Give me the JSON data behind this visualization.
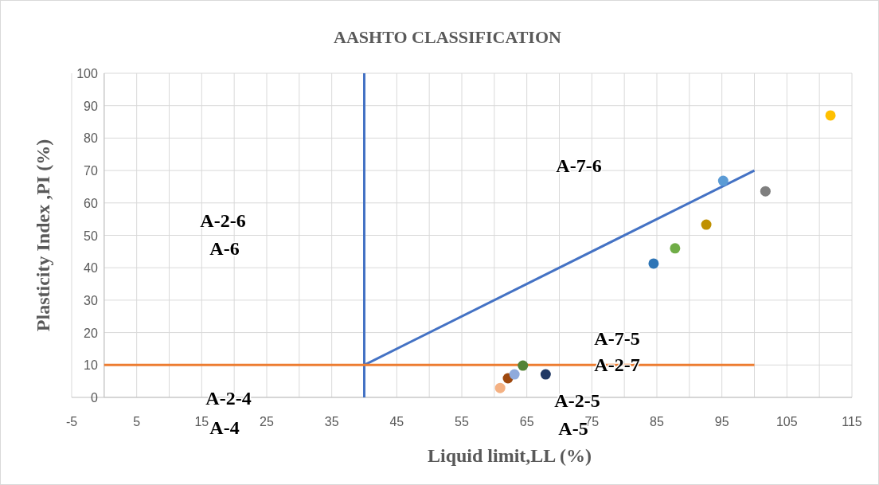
{
  "chart_data": {
    "type": "scatter",
    "title": "AASHTO CLASSIFICATION",
    "xlabel": "Liquid limit,LL (%)",
    "ylabel": "Plasticity Index ,PI (%)",
    "xlim": [
      -5,
      115
    ],
    "xticks": [
      -5,
      {
        "value": 0,
        "label": null
      },
      5,
      {
        "value": 10,
        "label": null
      },
      15,
      {
        "value": 20,
        "label": null
      },
      25,
      {
        "value": 30,
        "label": null
      },
      35,
      {
        "value": 40,
        "label": null
      },
      45,
      {
        "value": 50,
        "label": null
      },
      55,
      {
        "value": 60,
        "label": null
      },
      65,
      {
        "value": 70,
        "label": null
      },
      75,
      {
        "value": 80,
        "label": null
      },
      85,
      {
        "value": 90,
        "label": null
      },
      95,
      {
        "value": 100,
        "label": null
      },
      105,
      {
        "value": 110,
        "label": null
      },
      115
    ],
    "ylim": [
      0,
      100
    ],
    "yticks": [
      0,
      10,
      20,
      30,
      40,
      50,
      60,
      70,
      80,
      90,
      100
    ],
    "grid": true,
    "marker": "circle",
    "series": [
      {
        "type": "line",
        "x": [
          40,
          40
        ],
        "values": [
          0,
          100
        ],
        "color": "#4472c4",
        "marker": "none"
      },
      {
        "type": "line",
        "x": [
          40,
          100
        ],
        "values": [
          10,
          70
        ],
        "color": "#4472c4",
        "marker": "none"
      },
      {
        "type": "line",
        "x": [
          0,
          100
        ],
        "values": [
          10,
          10
        ],
        "color": "#ed7d31",
        "marker": "none"
      },
      {
        "x": [
          111.7,
          95.2,
          101.7,
          92.6,
          87.8,
          84.5,
          64.4,
          67.9,
          62.1,
          63.1,
          60.9
        ],
        "values": [
          87,
          66.8,
          63.6,
          53.3,
          46,
          41.3,
          9.8,
          7.1,
          5.9,
          7.1,
          2.9
        ],
        "colors": [
          "#ffc000",
          "#5b9bd5",
          "#7f7f7f",
          "#bf9000",
          "#70ad47",
          "#2e75b6",
          "#548235",
          "#203864",
          "#9e480e",
          "#8faadc",
          "#f4b183"
        ]
      }
    ],
    "annotations": [
      "A-7-6",
      "A-2-6",
      "A-6",
      "A-7-5",
      "A-2-7",
      "A-2-5",
      "A-5",
      "A-2-4",
      "A-4"
    ]
  }
}
